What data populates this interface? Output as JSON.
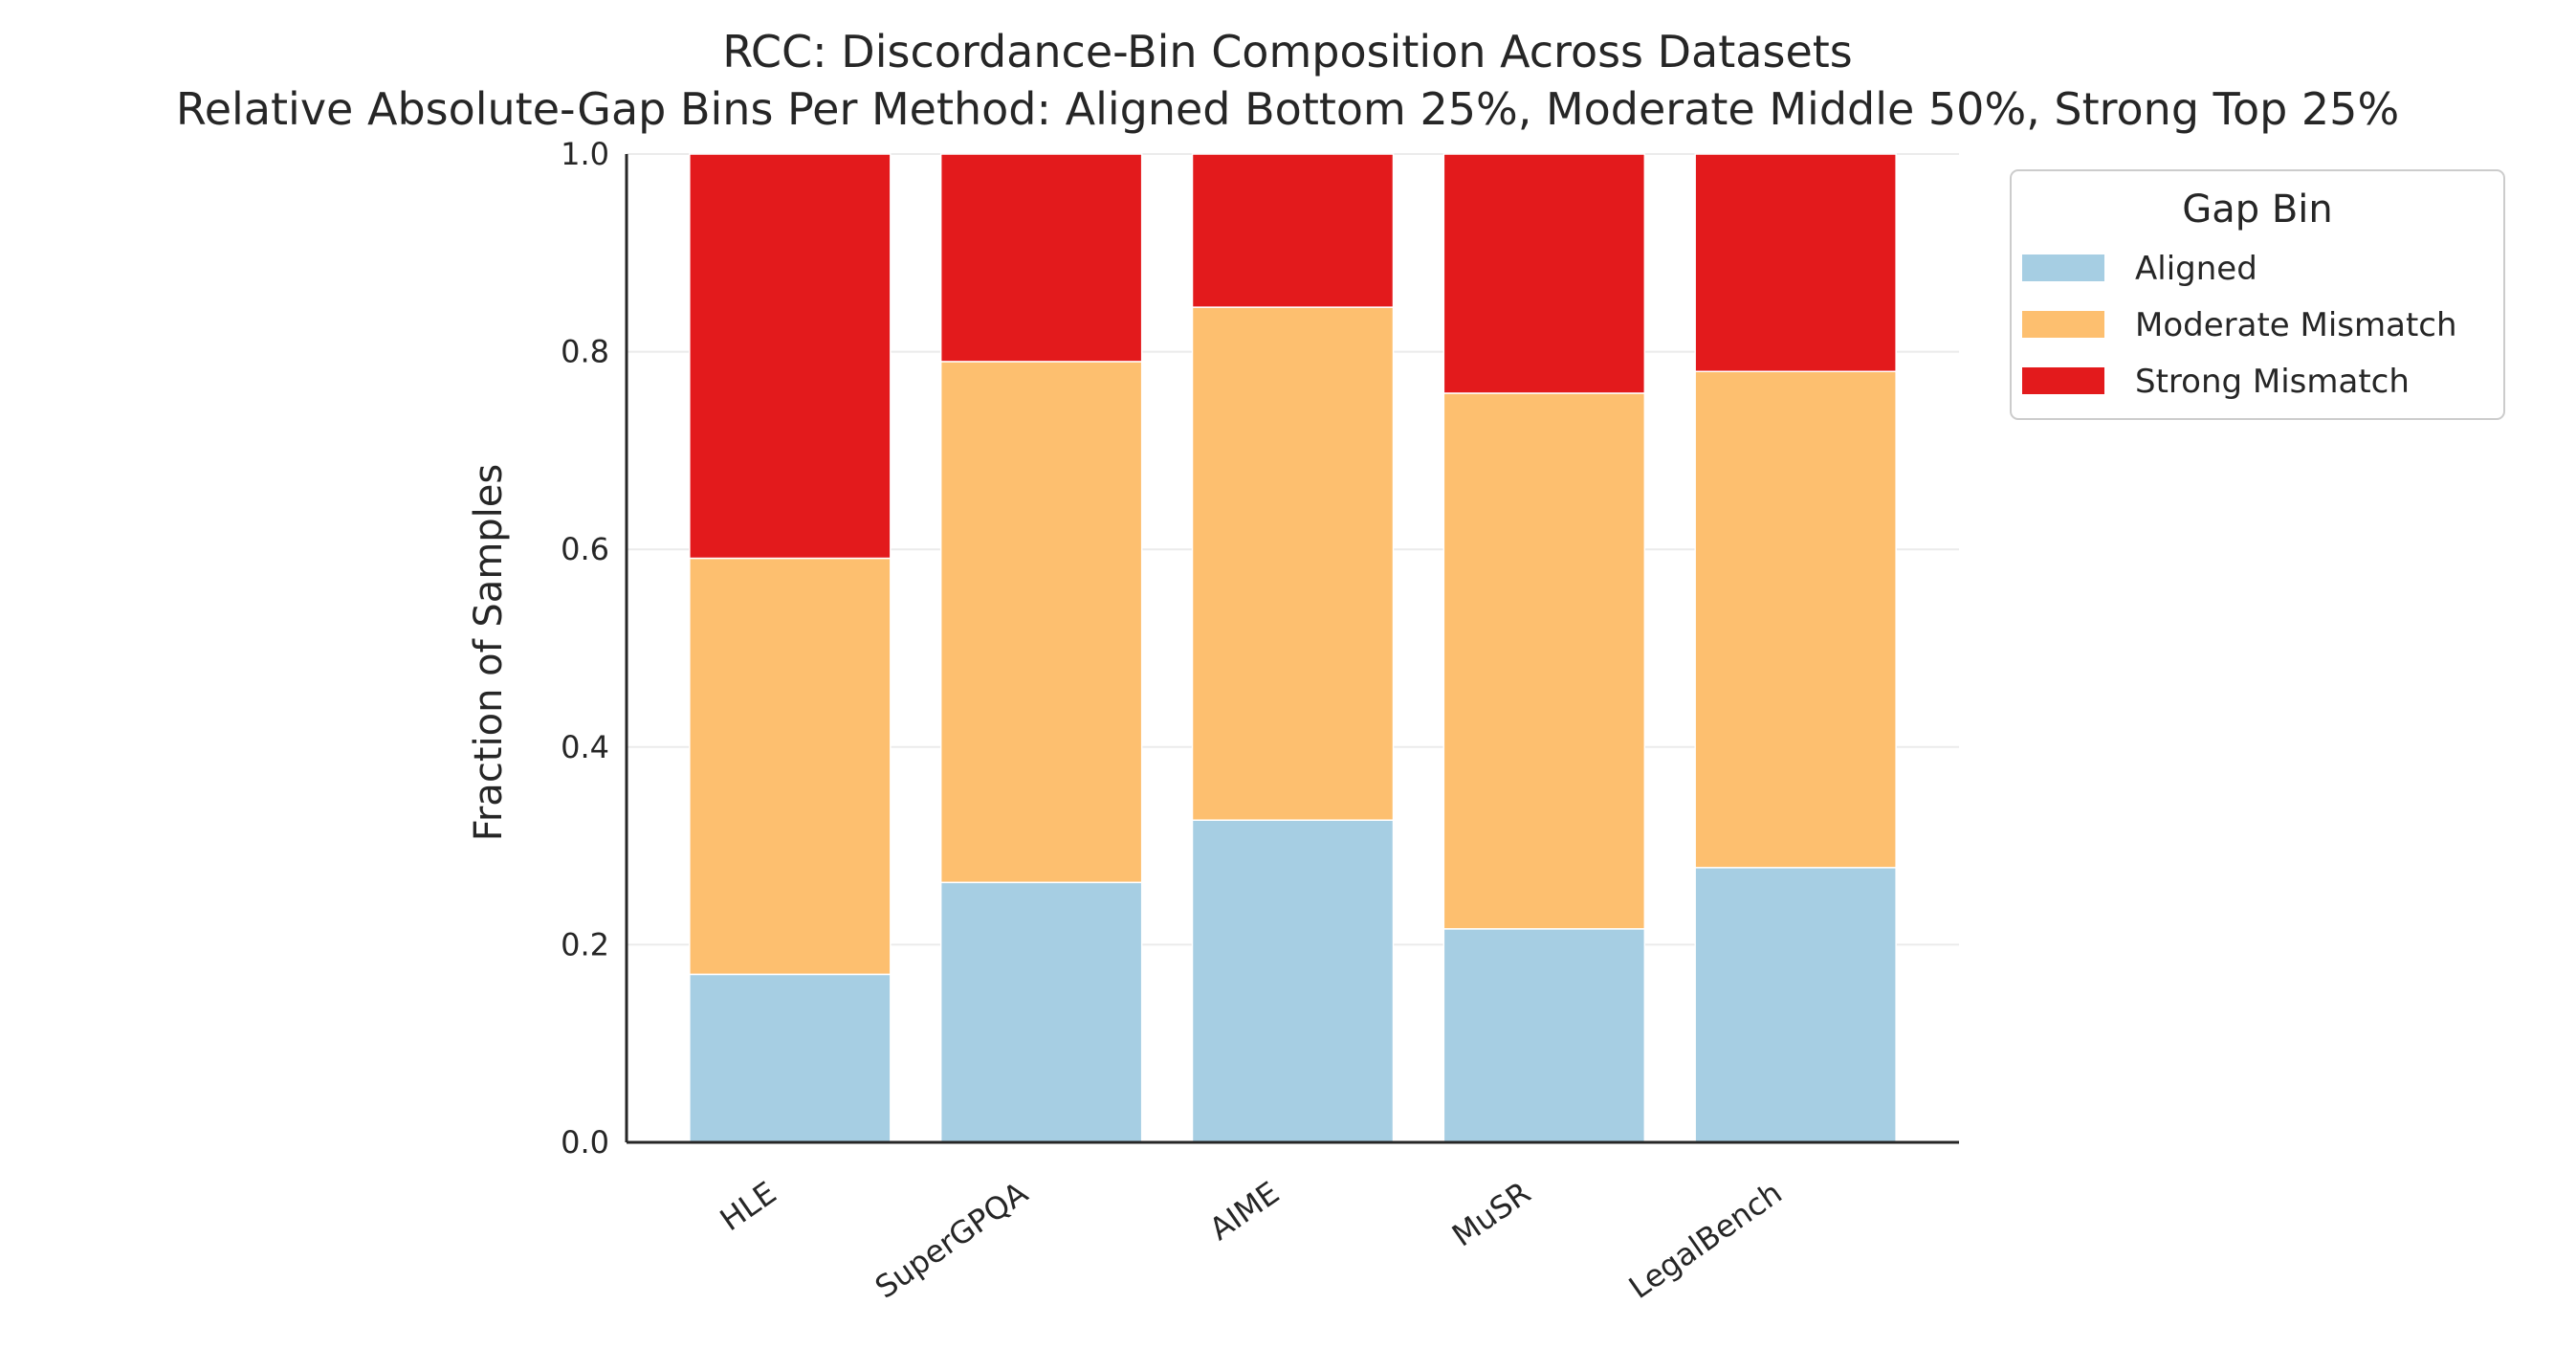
{
  "chart_data": {
    "type": "bar",
    "stacked": true,
    "title": "RCC: Discordance-Bin Composition Across Datasets",
    "subtitle": "Relative Absolute-Gap Bins Per Method: Aligned Bottom 25%, Moderate Middle 50%, Strong Top 25%",
    "xlabel": "",
    "ylabel": "Fraction of Samples",
    "ylim": [
      0.0,
      1.0
    ],
    "yticks": [
      "0.0",
      "0.2",
      "0.4",
      "0.6",
      "0.8",
      "1.0"
    ],
    "grid": "horizontal",
    "categories": [
      "HLE",
      "SuperGPQA",
      "AIME",
      "MuSR",
      "LegalBench"
    ],
    "series": [
      {
        "name": "Aligned",
        "color": "#a6cee3",
        "values": [
          0.17,
          0.263,
          0.326,
          0.216,
          0.278
        ]
      },
      {
        "name": "Moderate Mismatch",
        "color": "#fdbf6f",
        "values": [
          0.421,
          0.527,
          0.519,
          0.542,
          0.502
        ]
      },
      {
        "name": "Strong Mismatch",
        "color": "#e31a1c",
        "values": [
          0.409,
          0.21,
          0.155,
          0.242,
          0.22
        ]
      }
    ],
    "legend": {
      "title": "Gap Bin",
      "placement": "outside upper right"
    }
  }
}
